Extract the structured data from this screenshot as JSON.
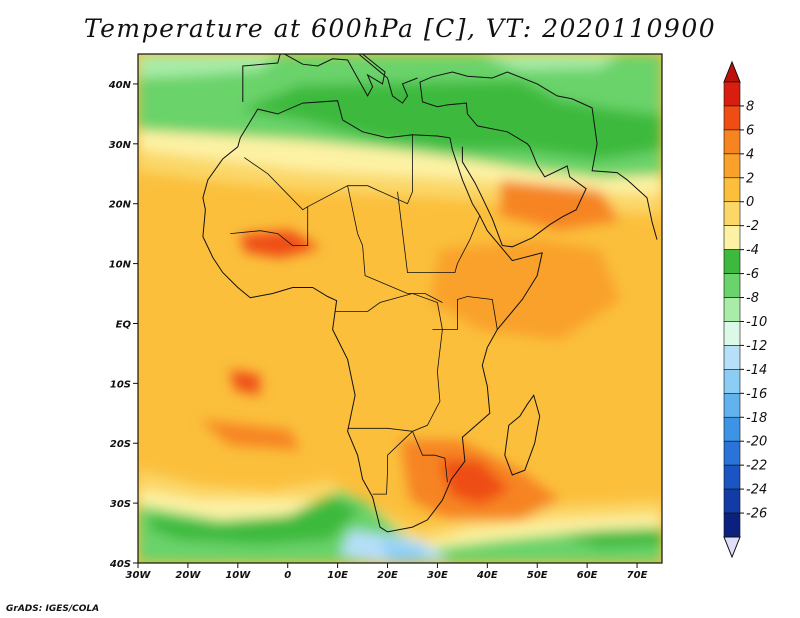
{
  "title": "Temperature at 600hPa [C], VT: 2020110900",
  "credit": "GrADS: IGES/COLA",
  "axes": {
    "x_ticks": [
      "30W",
      "20W",
      "10W",
      "0",
      "10E",
      "20E",
      "30E",
      "40E",
      "50E",
      "60E",
      "70E"
    ],
    "y_ticks": [
      "40N",
      "30N",
      "20N",
      "10N",
      "EQ",
      "10S",
      "20S",
      "30S",
      "40S"
    ],
    "lon_range": [
      -30,
      75
    ],
    "lat_range": [
      -40,
      45
    ]
  },
  "colorbar": {
    "labels": [
      "8",
      "6",
      "4",
      "2",
      "0",
      "-2",
      "-4",
      "-6",
      "-8",
      "-10",
      "-12",
      "-14",
      "-16",
      "-18",
      "-20",
      "-22",
      "-24",
      "-26"
    ],
    "colors": [
      "#d91e0f",
      "#ef4d14",
      "#f68420",
      "#f9a12a",
      "#fbbf3c",
      "#fbd768",
      "#fdf2a4",
      "#3dba3d",
      "#6bd36b",
      "#a8eca8",
      "#dcf9e8",
      "#b6dff8",
      "#8ccdf5",
      "#62b2ee",
      "#3d94e6",
      "#2a73d9",
      "#1b55c4",
      "#123ba6",
      "#0c2080"
    ],
    "top_color": "#c0100a",
    "bottom_color": "#e0e0fa"
  },
  "field_colors": {
    "t_neg8": "#6bd36b",
    "t_neg6": "#3dba3d",
    "t_neg4": "#fdf2a4",
    "t_neg2": "#fbd768",
    "t_0": "#fbbf3c",
    "t_2": "#f9a12a",
    "t_4": "#f68420",
    "t_6": "#ef4d14",
    "t_neg10": "#a8eca8",
    "t_neg12": "#b6dff8",
    "t_neg14": "#8ccdf5",
    "t_neg16": "#62b2ee"
  }
}
